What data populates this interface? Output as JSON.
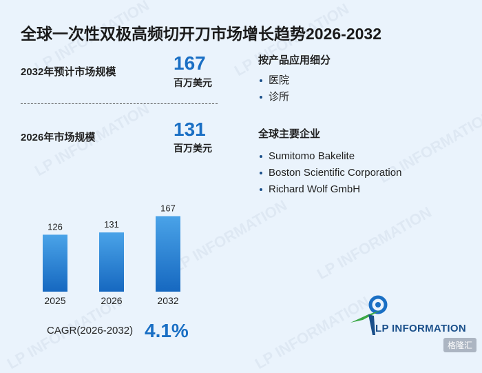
{
  "title": "全球一次性双极高频切开刀市场增长趋势2026-2032",
  "metrics": {
    "m2032_label": "2032年预计市场规模",
    "m2032_value": "167",
    "m2032_unit": "百万美元",
    "m2026_label": "2026年市场规模",
    "m2026_value": "131",
    "m2026_unit": "百万美元"
  },
  "segments": {
    "heading": "按产品应用细分",
    "items": [
      "医院",
      "诊所"
    ]
  },
  "companies": {
    "heading": "全球主要企业",
    "items": [
      "Sumitomo Bakelite",
      "Boston Scientific Corporation",
      "Richard Wolf GmbH"
    ]
  },
  "cagr": {
    "label": "CAGR(2026-2032)",
    "value": "4.1%"
  },
  "logo": {
    "text": "LP INFORMATION"
  },
  "watermark": "LP INFORMATION",
  "badge": "格隆汇",
  "colors": {
    "accent": "#1a6fc4",
    "bar_top": "#4aa3e8",
    "bar_bottom": "#1668c0",
    "background": "#eaf3fc"
  },
  "chart_data": {
    "type": "bar",
    "categories": [
      "2025",
      "2026",
      "2032"
    ],
    "values": [
      126,
      131,
      167
    ],
    "title": "",
    "xlabel": "",
    "ylabel": "",
    "ylim": [
      0,
      180
    ]
  }
}
